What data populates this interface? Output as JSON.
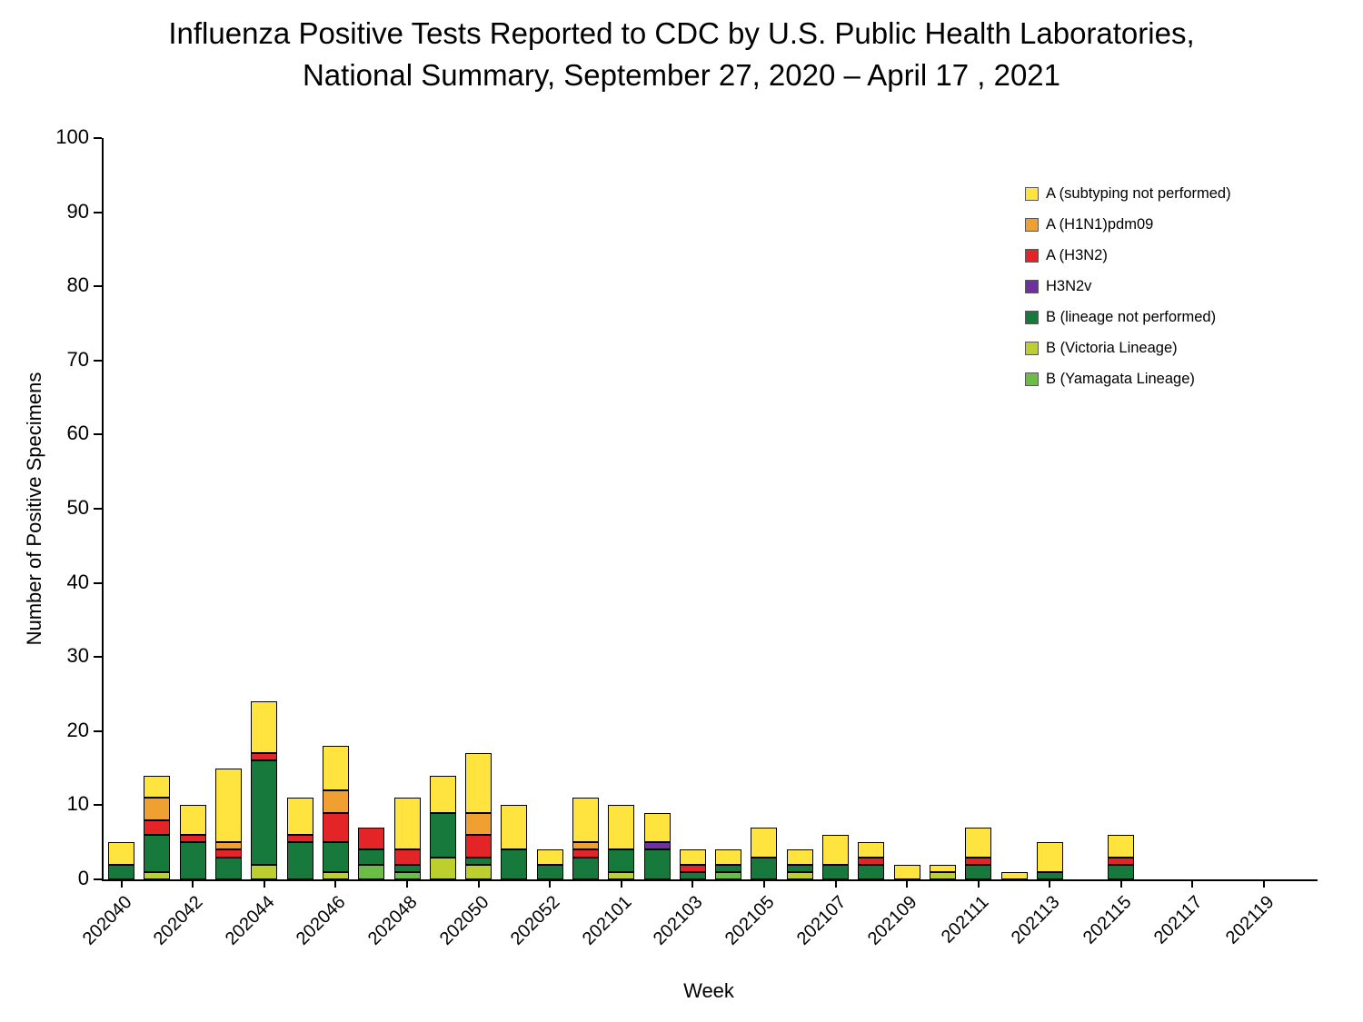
{
  "title": {
    "line1": "Influenza Positive Tests Reported to CDC by U.S. Public Health Laboratories,",
    "line2": "National Summary, September 27, 2020 – April 17 , 2021"
  },
  "chart_data": {
    "type": "bar",
    "stacked": true,
    "title": "Influenza Positive Tests Reported to CDC by U.S. Public Health Laboratories, National Summary, September 27, 2020 – April 17 , 2021",
    "xlabel": "Week",
    "ylabel": "Number of Positive Specimens",
    "ylim": [
      0,
      100
    ],
    "yticks": [
      0,
      10,
      20,
      30,
      40,
      50,
      60,
      70,
      80,
      90,
      100
    ],
    "grid": false,
    "legend_position": "upper right",
    "xtick_every": 2,
    "weeks": [
      "202040",
      "202041",
      "202042",
      "202043",
      "202044",
      "202045",
      "202046",
      "202047",
      "202048",
      "202049",
      "202050",
      "202051",
      "202052",
      "202053",
      "202101",
      "202102",
      "202103",
      "202104",
      "202105",
      "202106",
      "202107",
      "202108",
      "202109",
      "202110",
      "202111",
      "202112",
      "202113",
      "202114",
      "202115",
      "202116",
      "202117",
      "202118",
      "202119",
      "202120"
    ],
    "series": [
      {
        "name": "A (subtyping not performed)",
        "color": "#FFE33F",
        "values": [
          3,
          3,
          4,
          10,
          7,
          5,
          6,
          0,
          7,
          5,
          8,
          6,
          2,
          6,
          6,
          4,
          2,
          2,
          4,
          2,
          4,
          2,
          2,
          1,
          4,
          1,
          4,
          0,
          3,
          0,
          0,
          0,
          0,
          0
        ]
      },
      {
        "name": "A (H1N1)pdm09",
        "color": "#F0A030",
        "values": [
          0,
          3,
          0,
          1,
          0,
          0,
          3,
          0,
          0,
          0,
          3,
          0,
          0,
          1,
          0,
          0,
          0,
          0,
          0,
          0,
          0,
          0,
          0,
          0,
          0,
          0,
          0,
          0,
          0,
          0,
          0,
          0,
          0,
          0
        ]
      },
      {
        "name": "A (H3N2)",
        "color": "#E42528",
        "values": [
          0,
          2,
          1,
          1,
          1,
          1,
          4,
          3,
          2,
          0,
          3,
          0,
          0,
          1,
          0,
          0,
          1,
          0,
          0,
          0,
          0,
          1,
          0,
          0,
          1,
          0,
          0,
          0,
          1,
          0,
          0,
          0,
          0,
          0
        ]
      },
      {
        "name": "H3N2v",
        "color": "#7030A0",
        "values": [
          0,
          0,
          0,
          0,
          0,
          0,
          0,
          0,
          0,
          0,
          0,
          0,
          0,
          0,
          0,
          1,
          0,
          0,
          0,
          0,
          0,
          0,
          0,
          0,
          0,
          0,
          0,
          0,
          0,
          0,
          0,
          0,
          0,
          0
        ]
      },
      {
        "name": "B (lineage not performed)",
        "color": "#17793B",
        "values": [
          2,
          5,
          5,
          3,
          14,
          5,
          4,
          2,
          1,
          6,
          1,
          4,
          2,
          3,
          3,
          4,
          1,
          1,
          3,
          1,
          2,
          2,
          0,
          0,
          2,
          0,
          1,
          0,
          2,
          0,
          0,
          0,
          0,
          0
        ]
      },
      {
        "name": "B (Victoria Lineage)",
        "color": "#BDCE2F",
        "values": [
          0,
          1,
          0,
          0,
          2,
          0,
          1,
          0,
          0,
          3,
          2,
          0,
          0,
          0,
          1,
          0,
          0,
          0,
          0,
          1,
          0,
          0,
          0,
          1,
          0,
          0,
          0,
          0,
          0,
          0,
          0,
          0,
          0,
          0
        ]
      },
      {
        "name": "B (Yamagata Lineage)",
        "color": "#6ABD45",
        "values": [
          0,
          0,
          0,
          0,
          0,
          0,
          0,
          2,
          1,
          0,
          0,
          0,
          0,
          0,
          0,
          0,
          0,
          1,
          0,
          0,
          0,
          0,
          0,
          0,
          0,
          0,
          0,
          0,
          0,
          0,
          0,
          0,
          0,
          0
        ]
      }
    ],
    "stack_bottom_to_top": [
      "B (Yamagata Lineage)",
      "B (Victoria Lineage)",
      "B (lineage not performed)",
      "H3N2v",
      "A (H3N2)",
      "A (H1N1)pdm09",
      "A (subtyping not performed)"
    ]
  }
}
